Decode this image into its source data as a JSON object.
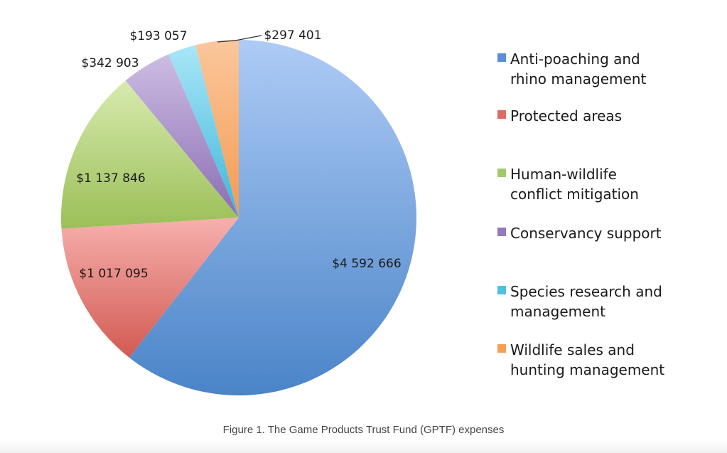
{
  "chart_data": {
    "type": "pie",
    "title": "",
    "caption": "Figure 1. The Game Products Trust Fund (GPTF) expenses",
    "start": "12 o'clock",
    "direction": "clockwise",
    "legend_position": "right",
    "slices": [
      {
        "name": "Anti-poaching and rhino management",
        "value": 4592666,
        "label": "$4 592 666",
        "color": "#6a9bdc",
        "color_light": "#aecbf5",
        "color_dark": "#4a84c8"
      },
      {
        "name": "Protected areas",
        "value": 1017095,
        "label": "$1 017 095",
        "color": "#e58a86",
        "color_light": "#f7b0ae",
        "color_dark": "#d25a52"
      },
      {
        "name": "Human-wildlife conflict mitigation",
        "value": 1137846,
        "label": "$1 137 846",
        "color": "#b6d47f",
        "color_light": "#d8eaae",
        "color_dark": "#9bbf58"
      },
      {
        "name": "Conservancy support",
        "value": 342903,
        "label": "$342 903",
        "color": "#a98fc7",
        "color_light": "#cdbde3",
        "color_dark": "#8a6db3"
      },
      {
        "name": "Species research and management",
        "value": 193057,
        "label": "$193 057",
        "color": "#6fcbe6",
        "color_light": "#a9e6f8",
        "color_dark": "#3fb6d8"
      },
      {
        "name": "Wildlife sales and hunting management",
        "value": 297401,
        "label": "$297 401",
        "color": "#f8b07a",
        "color_light": "#fbc79d",
        "color_dark": "#f39a50"
      }
    ]
  },
  "legend": {
    "items": [
      {
        "lines": [
          "Anti-poaching and",
          "rhino management"
        ],
        "color": "#5b8fd6"
      },
      {
        "lines": [
          "Protected areas"
        ],
        "color": "#de6a66"
      },
      {
        "lines": [
          "Human-wildlife",
          "conflict mitigation"
        ],
        "color": "#a3c96a"
      },
      {
        "lines": [
          "Conservancy support"
        ],
        "color": "#9479bd"
      },
      {
        "lines": [
          "Species research and",
          "management"
        ],
        "color": "#4fc0de"
      },
      {
        "lines": [
          "Wildlife sales and",
          "hunting management"
        ],
        "color": "#f7a055"
      }
    ]
  }
}
